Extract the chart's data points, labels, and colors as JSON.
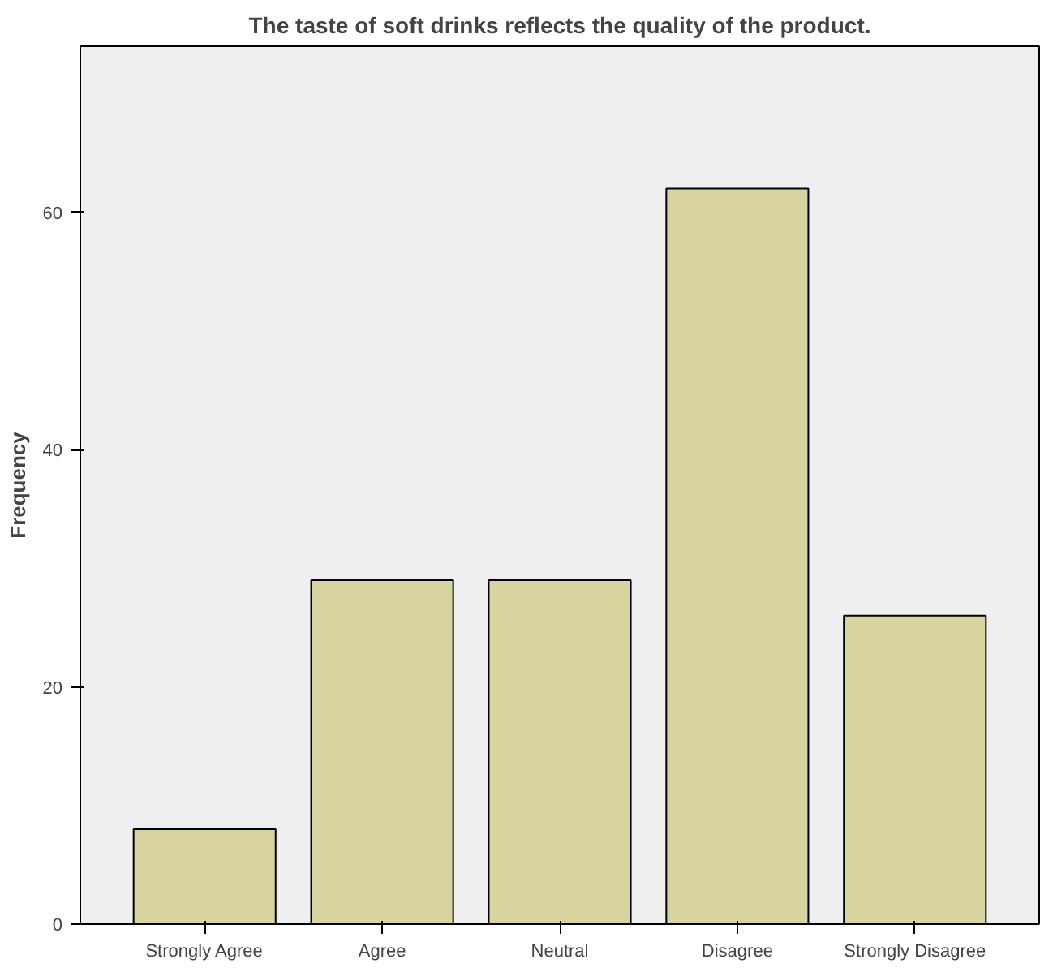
{
  "chart_data": {
    "type": "bar",
    "title": "The taste of soft drinks reflects the quality of the product.",
    "ylabel": "Frequency",
    "categories": [
      "Strongly Agree",
      "Agree",
      "Neutral",
      "Disagree",
      "Strongly Disagree"
    ],
    "values": [
      8,
      29,
      29,
      62,
      26
    ],
    "color": "#d8d49f",
    "ylim": [
      0,
      74
    ],
    "yticks": [
      0,
      20,
      40,
      60
    ],
    "grid": false
  }
}
